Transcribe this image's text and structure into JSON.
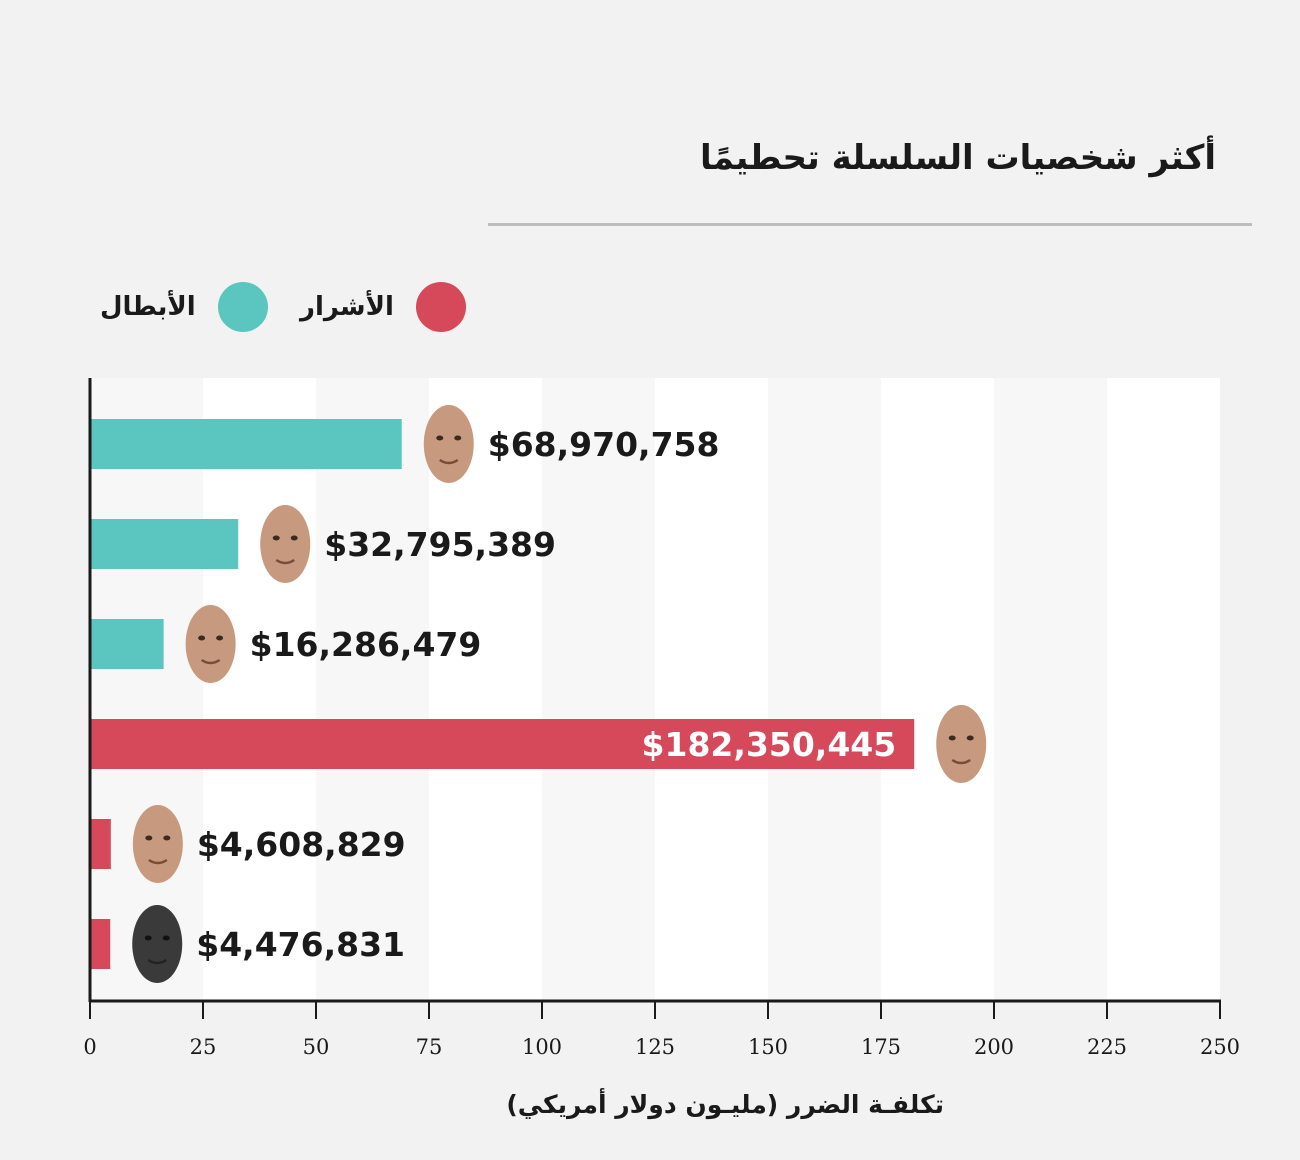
{
  "title": "أكثر شخصيات السلسلة تحطيمًا",
  "legend": {
    "villains": {
      "label": "الأشرار",
      "color": "#d6495b"
    },
    "heroes": {
      "label": "الأبطال",
      "color": "#5bc5bf"
    }
  },
  "chart_data": {
    "type": "bar",
    "orientation": "horizontal",
    "xlabel": "تكلفـة الضرر    (مليـون دولار أمريكي)",
    "xlim": [
      0,
      250
    ],
    "xticks": [
      0,
      25,
      50,
      75,
      100,
      125,
      150,
      175,
      200,
      225,
      250
    ],
    "bars": [
      {
        "value": 68.970758,
        "label": "$68,970,758",
        "group": "heroes",
        "face": "bald-man-face-icon"
      },
      {
        "value": 32.795389,
        "label": "$32,795,389",
        "group": "heroes",
        "face": "bald-bearded-man-face-icon"
      },
      {
        "value": 16.286479,
        "label": "$16,286,479",
        "group": "heroes",
        "face": "young-man-face-icon"
      },
      {
        "value": 182.350445,
        "label": "$182,350,445",
        "group": "villains",
        "face": "laughing-bald-man-face-icon"
      },
      {
        "value": 4.608829,
        "label": "$4,608,829",
        "group": "villains",
        "face": "dark-haired-man-face-icon"
      },
      {
        "value": 4.476831,
        "label": "$4,476,831",
        "group": "villains",
        "face": "man-with-sunglasses-face-icon"
      }
    ]
  }
}
